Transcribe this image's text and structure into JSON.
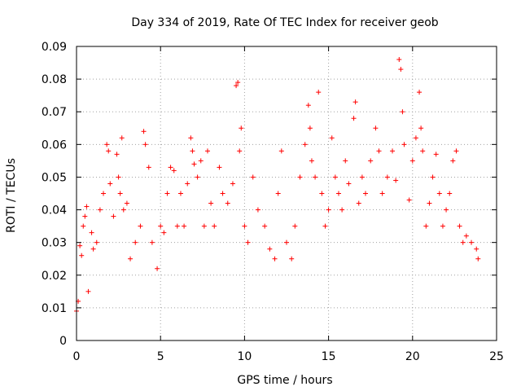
{
  "chart_data": {
    "type": "scatter",
    "title": "Day 334 of 2019, Rate Of TEC Index for receiver geob",
    "xlabel": "GPS time / hours",
    "ylabel": "ROTI / TECUs",
    "xlim": [
      0,
      25
    ],
    "ylim": [
      0,
      0.09
    ],
    "xticks": [
      0,
      5,
      10,
      15,
      20,
      25
    ],
    "yticks": [
      0,
      0.01,
      0.02,
      0.03,
      0.04,
      0.05,
      0.06,
      0.07,
      0.08,
      0.09
    ],
    "x_tick_labels": [
      "0",
      "5",
      "10",
      "15",
      "20",
      "25"
    ],
    "y_tick_labels": [
      "0",
      "0.01",
      "0.02",
      "0.03",
      "0.04",
      "0.05",
      "0.06",
      "0.07",
      "0.08",
      "0.09"
    ],
    "grid": true,
    "marker": "+",
    "marker_color": "#ff0000",
    "x_range_hours": [
      0,
      24
    ],
    "points": [
      [
        0.0,
        0.009
      ],
      [
        0.1,
        0.012
      ],
      [
        0.2,
        0.029
      ],
      [
        0.3,
        0.026
      ],
      [
        0.4,
        0.035
      ],
      [
        0.5,
        0.038
      ],
      [
        0.6,
        0.041
      ],
      [
        0.7,
        0.015
      ],
      [
        0.9,
        0.033
      ],
      [
        1.0,
        0.028
      ],
      [
        1.2,
        0.03
      ],
      [
        1.4,
        0.04
      ],
      [
        1.6,
        0.045
      ],
      [
        1.8,
        0.06
      ],
      [
        1.9,
        0.058
      ],
      [
        2.0,
        0.048
      ],
      [
        2.2,
        0.038
      ],
      [
        2.4,
        0.057
      ],
      [
        2.5,
        0.05
      ],
      [
        2.6,
        0.045
      ],
      [
        2.7,
        0.062
      ],
      [
        2.8,
        0.04
      ],
      [
        3.0,
        0.042
      ],
      [
        3.2,
        0.025
      ],
      [
        3.5,
        0.03
      ],
      [
        3.8,
        0.035
      ],
      [
        4.0,
        0.064
      ],
      [
        4.1,
        0.06
      ],
      [
        4.3,
        0.053
      ],
      [
        4.5,
        0.03
      ],
      [
        4.8,
        0.022
      ],
      [
        5.0,
        0.035
      ],
      [
        5.2,
        0.033
      ],
      [
        5.4,
        0.045
      ],
      [
        5.6,
        0.053
      ],
      [
        5.8,
        0.052
      ],
      [
        6.0,
        0.035
      ],
      [
        6.2,
        0.045
      ],
      [
        6.4,
        0.035
      ],
      [
        6.6,
        0.048
      ],
      [
        6.8,
        0.062
      ],
      [
        6.9,
        0.058
      ],
      [
        7.0,
        0.054
      ],
      [
        7.2,
        0.05
      ],
      [
        7.4,
        0.055
      ],
      [
        7.6,
        0.035
      ],
      [
        7.8,
        0.058
      ],
      [
        8.0,
        0.042
      ],
      [
        8.2,
        0.035
      ],
      [
        8.5,
        0.053
      ],
      [
        8.7,
        0.045
      ],
      [
        9.0,
        0.042
      ],
      [
        9.3,
        0.048
      ],
      [
        9.5,
        0.078
      ],
      [
        9.6,
        0.079
      ],
      [
        9.7,
        0.058
      ],
      [
        9.8,
        0.065
      ],
      [
        10.0,
        0.035
      ],
      [
        10.2,
        0.03
      ],
      [
        10.5,
        0.05
      ],
      [
        10.8,
        0.04
      ],
      [
        11.2,
        0.035
      ],
      [
        11.5,
        0.028
      ],
      [
        11.8,
        0.025
      ],
      [
        12.0,
        0.045
      ],
      [
        12.2,
        0.058
      ],
      [
        12.5,
        0.03
      ],
      [
        12.8,
        0.025
      ],
      [
        13.0,
        0.035
      ],
      [
        13.3,
        0.05
      ],
      [
        13.6,
        0.06
      ],
      [
        13.8,
        0.072
      ],
      [
        13.9,
        0.065
      ],
      [
        14.0,
        0.055
      ],
      [
        14.2,
        0.05
      ],
      [
        14.4,
        0.076
      ],
      [
        14.6,
        0.045
      ],
      [
        14.8,
        0.035
      ],
      [
        15.0,
        0.04
      ],
      [
        15.2,
        0.062
      ],
      [
        15.4,
        0.05
      ],
      [
        15.6,
        0.045
      ],
      [
        15.8,
        0.04
      ],
      [
        16.0,
        0.055
      ],
      [
        16.2,
        0.048
      ],
      [
        16.5,
        0.068
      ],
      [
        16.6,
        0.073
      ],
      [
        16.8,
        0.042
      ],
      [
        17.0,
        0.05
      ],
      [
        17.2,
        0.045
      ],
      [
        17.5,
        0.055
      ],
      [
        17.8,
        0.065
      ],
      [
        18.0,
        0.058
      ],
      [
        18.2,
        0.045
      ],
      [
        18.5,
        0.05
      ],
      [
        18.8,
        0.058
      ],
      [
        19.0,
        0.049
      ],
      [
        19.2,
        0.086
      ],
      [
        19.3,
        0.083
      ],
      [
        19.4,
        0.07
      ],
      [
        19.5,
        0.06
      ],
      [
        19.8,
        0.043
      ],
      [
        20.0,
        0.055
      ],
      [
        20.2,
        0.062
      ],
      [
        20.4,
        0.076
      ],
      [
        20.5,
        0.065
      ],
      [
        20.6,
        0.058
      ],
      [
        20.8,
        0.035
      ],
      [
        21.0,
        0.042
      ],
      [
        21.2,
        0.05
      ],
      [
        21.4,
        0.057
      ],
      [
        21.6,
        0.045
      ],
      [
        21.8,
        0.035
      ],
      [
        22.0,
        0.04
      ],
      [
        22.2,
        0.045
      ],
      [
        22.4,
        0.055
      ],
      [
        22.6,
        0.058
      ],
      [
        22.8,
        0.035
      ],
      [
        23.0,
        0.03
      ],
      [
        23.2,
        0.032
      ],
      [
        23.5,
        0.03
      ],
      [
        23.8,
        0.028
      ],
      [
        23.9,
        0.025
      ]
    ]
  }
}
